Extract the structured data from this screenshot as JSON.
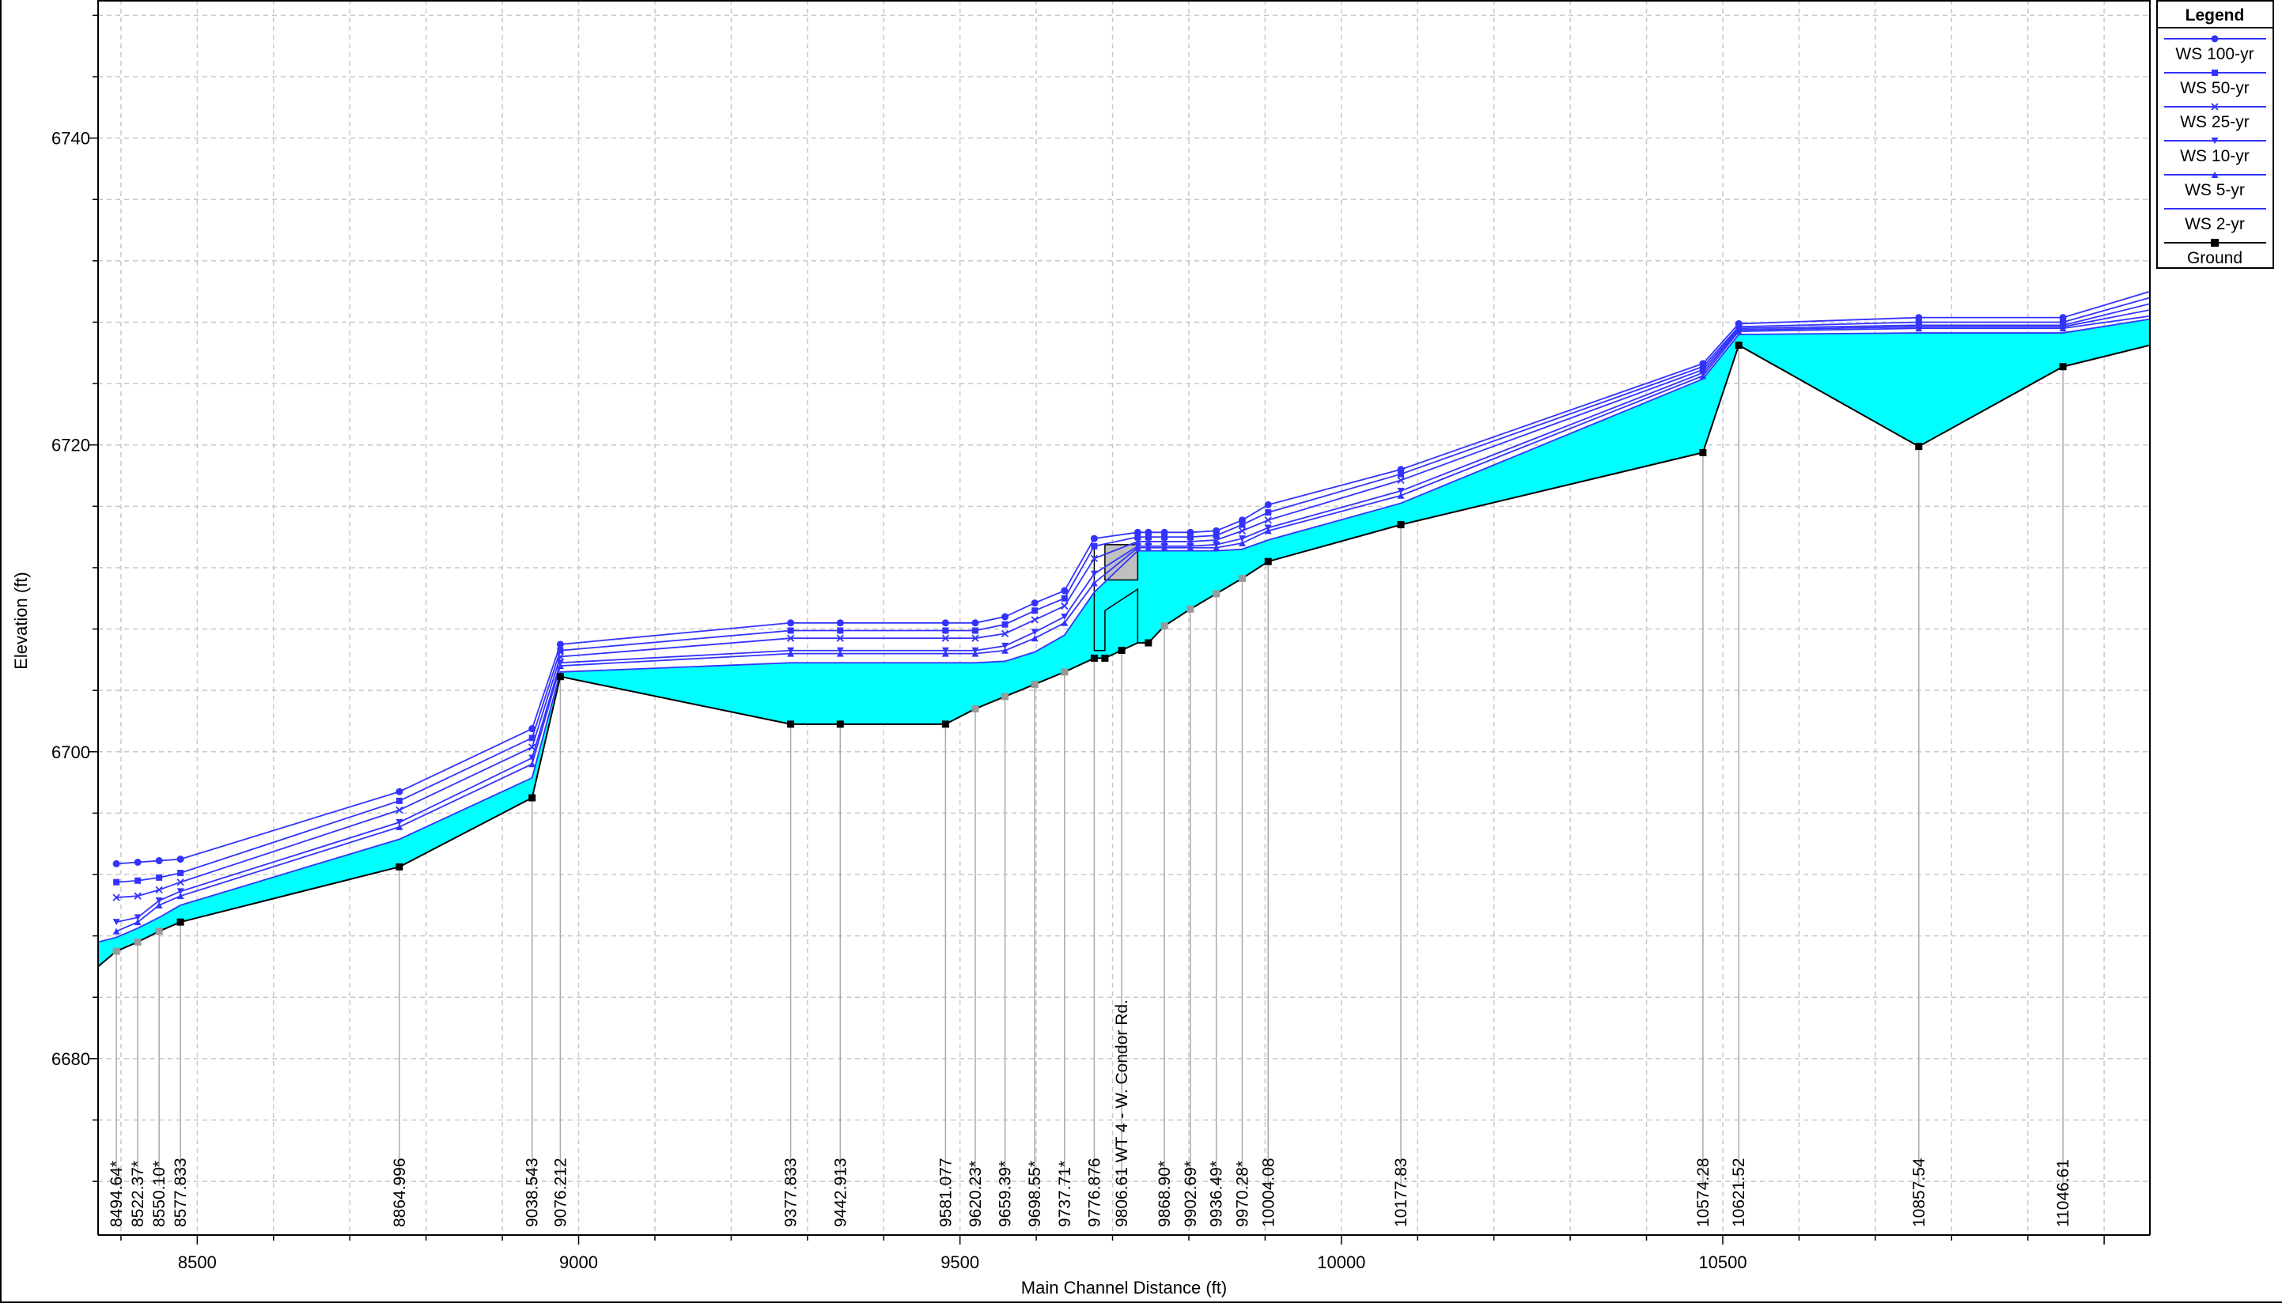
{
  "chart_data": {
    "type": "line",
    "xlabel": "Main Channel Distance (ft)",
    "ylabel": "Elevation (ft)",
    "xlim": [
      8370,
      11060
    ],
    "ylim": [
      6668.5,
      6749
    ],
    "x_ticks": [
      8500,
      9000,
      9500,
      10000,
      10500
    ],
    "y_ticks": [
      6680,
      6700,
      6720,
      6740
    ],
    "grid": true,
    "legend": {
      "title": "Legend",
      "placement": "top-right",
      "entries": [
        "WS  100-yr",
        "WS  50-yr",
        "WS  25-yr",
        "WS  10-yr",
        "WS  5-yr",
        "WS  2-yr",
        "Ground"
      ]
    },
    "station_labels": [
      {
        "x": 8394,
        "label": "8494.64*"
      },
      {
        "x": 8422,
        "label": "8522.37*"
      },
      {
        "x": 8450,
        "label": "8550.10*"
      },
      {
        "x": 8478,
        "label": "8577.833"
      },
      {
        "x": 8765,
        "label": "8864.996"
      },
      {
        "x": 8939,
        "label": "9038.543"
      },
      {
        "x": 8976,
        "label": "9076.212"
      },
      {
        "x": 9278,
        "label": "9377.833"
      },
      {
        "x": 9343,
        "label": "9442.913"
      },
      {
        "x": 9481,
        "label": "9581.077"
      },
      {
        "x": 9520,
        "label": "9620.23*"
      },
      {
        "x": 9559,
        "label": "9659.39*"
      },
      {
        "x": 9598,
        "label": "9698.55*"
      },
      {
        "x": 9637,
        "label": "9737.71*"
      },
      {
        "x": 9676,
        "label": "9776.876"
      },
      {
        "x": 9712,
        "label": "9806.61 WT 4 - W. Condor Rd."
      },
      {
        "x": 9768,
        "label": "9868.90*"
      },
      {
        "x": 9802,
        "label": "9902.69*"
      },
      {
        "x": 9836,
        "label": "9936.49*"
      },
      {
        "x": 9870,
        "label": "9970.28*"
      },
      {
        "x": 9904,
        "label": "10004.08"
      },
      {
        "x": 10078,
        "label": "10177.83"
      },
      {
        "x": 10474,
        "label": "10574.28"
      },
      {
        "x": 10521,
        "label": "10621.52"
      },
      {
        "x": 10757,
        "label": "10857.54"
      },
      {
        "x": 10946,
        "label": "11046.61"
      }
    ],
    "ground": {
      "x": [
        8370,
        8394,
        8422,
        8450,
        8478,
        8765,
        8939,
        8976,
        9278,
        9343,
        9481,
        9520,
        9559,
        9598,
        9637,
        9676,
        9690,
        9733,
        9747,
        9768,
        9802,
        9836,
        9870,
        9904,
        10078,
        10474,
        10521,
        10757,
        10946,
        11060
      ],
      "y": [
        6686.0,
        6687.0,
        6687.6,
        6688.3,
        6688.9,
        6692.5,
        6697.0,
        6704.9,
        6701.8,
        6701.8,
        6701.8,
        6702.8,
        6703.6,
        6704.4,
        6705.2,
        6706.1,
        6706.1,
        6707.1,
        6707.1,
        6708.2,
        6709.3,
        6710.3,
        6711.3,
        6712.4,
        6714.8,
        6719.5,
        6726.5,
        6719.9,
        6725.1,
        6726.5
      ]
    },
    "series": [
      {
        "name": "WS  100-yr",
        "marker": "circle",
        "x": [
          8394,
          8422,
          8450,
          8478,
          8765,
          8939,
          8976,
          9278,
          9343,
          9481,
          9520,
          9559,
          9598,
          9637,
          9676,
          9733,
          9747,
          9768,
          9802,
          9836,
          9870,
          9904,
          10078,
          10474,
          10521,
          10757,
          10946,
          11060
        ],
        "y": [
          6692.7,
          6692.8,
          6692.9,
          6693.0,
          6697.4,
          6701.5,
          6707.0,
          6708.4,
          6708.4,
          6708.4,
          6708.4,
          6708.8,
          6709.7,
          6710.5,
          6713.9,
          6714.3,
          6714.3,
          6714.3,
          6714.3,
          6714.4,
          6715.1,
          6716.1,
          6718.4,
          6725.3,
          6727.9,
          6728.3,
          6728.3,
          6730.0
        ]
      },
      {
        "name": "WS  50-yr",
        "marker": "square",
        "x": [
          8394,
          8422,
          8450,
          8478,
          8765,
          8939,
          8976,
          9278,
          9343,
          9481,
          9520,
          9559,
          9598,
          9637,
          9676,
          9733,
          9747,
          9768,
          9802,
          9836,
          9870,
          9904,
          10078,
          10474,
          10521,
          10757,
          10946,
          11060
        ],
        "y": [
          6691.5,
          6691.6,
          6691.8,
          6692.1,
          6696.8,
          6700.9,
          6706.6,
          6707.9,
          6707.9,
          6707.9,
          6707.9,
          6708.3,
          6709.2,
          6710.0,
          6713.4,
          6714.0,
          6714.0,
          6714.0,
          6714.0,
          6714.1,
          6714.8,
          6715.6,
          6718.1,
          6725.1,
          6727.7,
          6728.0,
          6728.0,
          6729.6
        ]
      },
      {
        "name": "WS  25-yr",
        "marker": "x",
        "x": [
          8394,
          8422,
          8450,
          8478,
          8765,
          8939,
          8976,
          9278,
          9343,
          9481,
          9520,
          9559,
          9598,
          9637,
          9676,
          9733,
          9747,
          9768,
          9802,
          9836,
          9870,
          9904,
          10078,
          10474,
          10521,
          10757,
          10946,
          11060
        ],
        "y": [
          6690.5,
          6690.6,
          6691.0,
          6691.5,
          6696.2,
          6700.3,
          6706.2,
          6707.4,
          6707.4,
          6707.4,
          6707.4,
          6707.7,
          6708.6,
          6709.5,
          6712.6,
          6713.7,
          6713.7,
          6713.7,
          6713.7,
          6713.8,
          6714.4,
          6715.1,
          6717.7,
          6724.9,
          6727.6,
          6727.8,
          6727.8,
          6729.2
        ]
      },
      {
        "name": "WS  10-yr",
        "marker": "triangle-down",
        "x": [
          8394,
          8422,
          8450,
          8478,
          8765,
          8939,
          8976,
          9278,
          9343,
          9481,
          9520,
          9559,
          9598,
          9637,
          9676,
          9733,
          9747,
          9768,
          9802,
          9836,
          9870,
          9904,
          10078,
          10474,
          10521,
          10757,
          10946,
          11060
        ],
        "y": [
          6688.9,
          6689.2,
          6690.3,
          6690.9,
          6695.4,
          6699.6,
          6705.8,
          6706.6,
          6706.6,
          6706.6,
          6706.6,
          6706.9,
          6707.8,
          6708.8,
          6711.6,
          6713.4,
          6713.4,
          6713.4,
          6713.4,
          6713.5,
          6713.9,
          6714.6,
          6717.0,
          6724.7,
          6727.5,
          6727.7,
          6727.7,
          6728.8
        ]
      },
      {
        "name": "WS  5-yr",
        "marker": "triangle-up",
        "x": [
          8394,
          8422,
          8450,
          8478,
          8765,
          8939,
          8976,
          9278,
          9343,
          9481,
          9520,
          9559,
          9598,
          9637,
          9676,
          9733,
          9747,
          9768,
          9802,
          9836,
          9870,
          9904,
          10078,
          10474,
          10521,
          10757,
          10946,
          11060
        ],
        "y": [
          6688.3,
          6688.9,
          6690.0,
          6690.6,
          6695.1,
          6699.2,
          6705.6,
          6706.4,
          6706.4,
          6706.4,
          6706.4,
          6706.6,
          6707.4,
          6708.4,
          6711.0,
          6713.3,
          6713.3,
          6713.3,
          6713.3,
          6713.3,
          6713.6,
          6714.4,
          6716.7,
          6724.5,
          6727.4,
          6727.6,
          6727.6,
          6728.4
        ]
      },
      {
        "name": "WS  2-yr",
        "marker": "none",
        "x": [
          8370,
          8394,
          8422,
          8450,
          8478,
          8765,
          8939,
          8976,
          9278,
          9343,
          9481,
          9520,
          9559,
          9598,
          9637,
          9676,
          9733,
          9747,
          9768,
          9802,
          9836,
          9870,
          9904,
          10078,
          10474,
          10521,
          10757,
          10946,
          11060
        ],
        "y": [
          6687.6,
          6687.9,
          6688.5,
          6689.2,
          6690.0,
          6694.3,
          6698.3,
          6705.2,
          6705.8,
          6705.8,
          6705.8,
          6705.8,
          6705.9,
          6706.5,
          6707.6,
          6710.4,
          6713.1,
          6713.1,
          6713.1,
          6713.1,
          6713.1,
          6713.2,
          6713.8,
          6716.2,
          6724.3,
          6727.2,
          6727.3,
          6727.3,
          6728.2
        ]
      }
    ],
    "bridge": {
      "label": "9806.61 WT 4 - W. Condor Rd.",
      "x_range": [
        9690,
        9733
      ],
      "low_chord_top": 6711.2,
      "deck_top": 6713.5,
      "deck_bottom": 6711.2
    },
    "colors": {
      "water": "#00ffff",
      "ws_line": "#3333ff",
      "ground_line": "#000000",
      "interpolated_marker": "#999999",
      "bridge_deck": "#c0c0c0",
      "grid": "#c8c8c8"
    }
  }
}
